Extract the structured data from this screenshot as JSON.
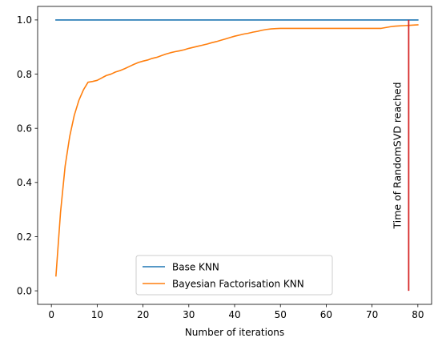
{
  "chart_data": {
    "type": "line",
    "xlabel": "Number of iterations",
    "ylabel": "",
    "xlim": [
      -3,
      83
    ],
    "ylim": [
      -0.05,
      1.05
    ],
    "x_ticks": [
      0,
      10,
      20,
      30,
      40,
      50,
      60,
      70,
      80
    ],
    "y_ticks": [
      0.0,
      0.2,
      0.4,
      0.6,
      0.8,
      1.0
    ],
    "x_tick_labels": [
      "0",
      "10",
      "20",
      "30",
      "40",
      "50",
      "60",
      "70",
      "80"
    ],
    "y_tick_labels": [
      "0.0",
      "0.2",
      "0.4",
      "0.6",
      "0.8",
      "1.0"
    ],
    "grid": false,
    "legend": {
      "placement": "lower-center"
    },
    "series": [
      {
        "name": "Base KNN",
        "color": "#1f77b4",
        "x": [
          1,
          80
        ],
        "y": [
          1.0,
          1.0
        ]
      },
      {
        "name": "Bayesian Factorisation KNN",
        "color": "#ff7f0e",
        "x": [
          1,
          2,
          3,
          4,
          5,
          6,
          7,
          8,
          9,
          10,
          11,
          12,
          13,
          14,
          15,
          16,
          17,
          18,
          19,
          20,
          21,
          22,
          23,
          24,
          25,
          26,
          27,
          28,
          29,
          30,
          31,
          32,
          33,
          34,
          35,
          36,
          37,
          38,
          39,
          40,
          41,
          42,
          43,
          44,
          45,
          46,
          47,
          48,
          49,
          50,
          51,
          52,
          53,
          54,
          55,
          56,
          57,
          58,
          59,
          60,
          61,
          62,
          63,
          64,
          65,
          66,
          67,
          68,
          69,
          70,
          71,
          72,
          73,
          74,
          75,
          76,
          77,
          78,
          79,
          80
        ],
        "y": [
          0.055,
          0.29,
          0.46,
          0.57,
          0.648,
          0.703,
          0.742,
          0.77,
          0.773,
          0.777,
          0.786,
          0.795,
          0.8,
          0.808,
          0.813,
          0.82,
          0.828,
          0.836,
          0.843,
          0.848,
          0.852,
          0.858,
          0.862,
          0.868,
          0.874,
          0.879,
          0.883,
          0.886,
          0.89,
          0.895,
          0.899,
          0.903,
          0.907,
          0.911,
          0.916,
          0.92,
          0.925,
          0.93,
          0.935,
          0.94,
          0.944,
          0.948,
          0.951,
          0.955,
          0.958,
          0.962,
          0.965,
          0.967,
          0.968,
          0.969,
          0.969,
          0.969,
          0.969,
          0.969,
          0.969,
          0.969,
          0.969,
          0.969,
          0.969,
          0.969,
          0.969,
          0.969,
          0.969,
          0.969,
          0.969,
          0.969,
          0.969,
          0.969,
          0.969,
          0.969,
          0.969,
          0.969,
          0.972,
          0.975,
          0.977,
          0.978,
          0.979,
          0.98,
          0.981,
          0.982
        ]
      }
    ],
    "annotations": [
      {
        "text": "Time of RandomSVD reached",
        "type": "vertical-line",
        "x": 78,
        "y_range": [
          0.0,
          1.0
        ],
        "color": "#d62728"
      }
    ]
  }
}
